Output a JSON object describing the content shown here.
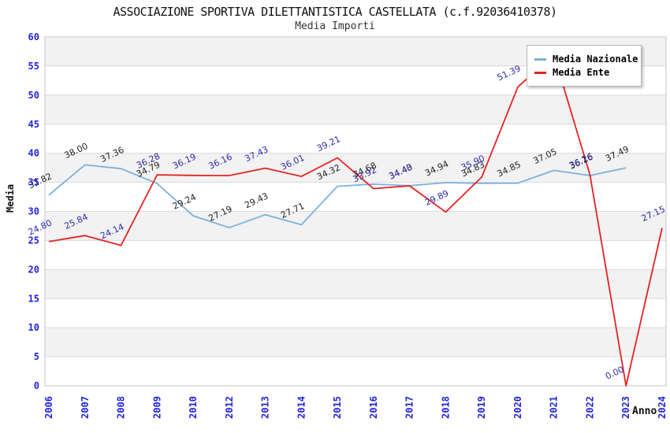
{
  "header": {
    "title": "ASSOCIAZIONE SPORTIVA DILETTANTISTICA CASTELLATA (c.f.92036410378)",
    "subtitle": "Media Importi"
  },
  "legend": {
    "position": "top-right",
    "items": [
      "Media Nazionale",
      "Media Ente"
    ]
  },
  "chart_data": {
    "type": "line",
    "title": "ASSOCIAZIONE SPORTIVA DILETTANTISTICA CASTELLATA (c.f.92036410378)",
    "subtitle": "Media Importi",
    "xlabel": "Anno",
    "ylabel": "Media",
    "ylim": [
      0,
      60
    ],
    "yticks": [
      0,
      5,
      10,
      15,
      20,
      25,
      30,
      35,
      40,
      45,
      50,
      55,
      60
    ],
    "grid": "horizontal",
    "alternating_bands": true,
    "categories": [
      "2006",
      "2007",
      "2008",
      "2009",
      "2010",
      "2012",
      "2013",
      "2014",
      "2015",
      "2016",
      "2017",
      "2018",
      "2019",
      "2020",
      "2021",
      "2022",
      "2023",
      "2024"
    ],
    "series": [
      {
        "name": "Media Nazionale",
        "color": "#7cb0dc",
        "label_color": "#1f1f1f",
        "values": [
          32.82,
          38.0,
          37.36,
          34.79,
          29.24,
          27.19,
          29.43,
          27.71,
          34.32,
          34.68,
          34.43,
          34.94,
          34.83,
          34.85,
          37.05,
          36.16,
          37.49,
          null
        ],
        "labels": [
          "32.82",
          "38.00",
          "37.36",
          "34.79",
          "29.24",
          "27.19",
          "29.43",
          "27.71",
          "34.32",
          "34.68",
          "34.43",
          "34.94",
          "34.83",
          "34.85",
          "37.05",
          "36.16",
          "37.49",
          ""
        ]
      },
      {
        "name": "Media Ente",
        "color": "#e62222",
        "label_color": "#2b2ba6",
        "values": [
          24.8,
          25.84,
          24.14,
          36.28,
          36.19,
          36.16,
          37.43,
          36.01,
          39.21,
          33.92,
          34.4,
          29.89,
          35.9,
          51.39,
          57.0,
          36.26,
          0.0,
          27.15
        ],
        "labels": [
          "24.80",
          "25.84",
          "24.14",
          "36.28",
          "36.19",
          "36.16",
          "37.43",
          "36.01",
          "39.21",
          "33.92",
          "34.40",
          "29.89",
          "35.90",
          "51.39",
          "",
          "36.26",
          "0.00",
          "27.15"
        ],
        "note": "2021 point label occluded by legend box"
      }
    ]
  },
  "colors": {
    "tick_label": "#2222dd",
    "band_gray": "#f2f2f2",
    "band_white": "#ffffff",
    "gridline": "#dadada",
    "plot_border": "#c4c4c4"
  }
}
